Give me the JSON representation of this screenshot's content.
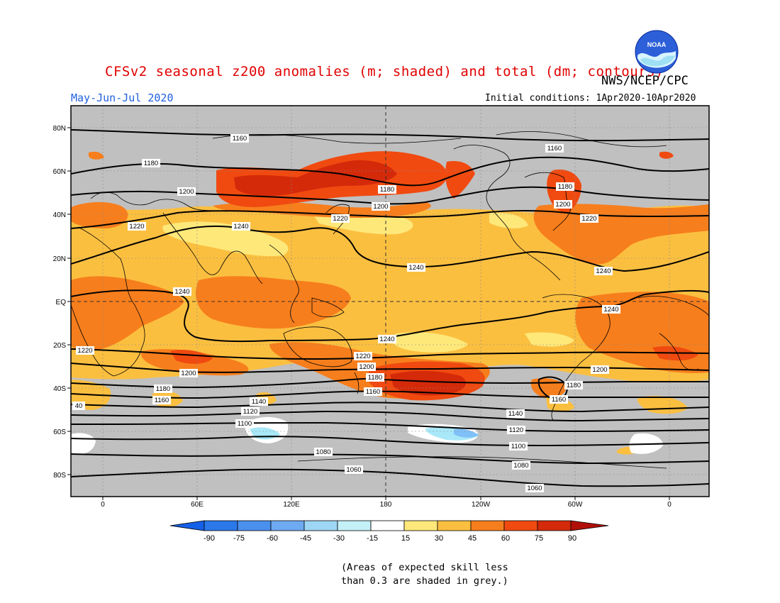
{
  "header": {
    "title": "CFSv2 seasonal z200 anomalies (m; shaded) and total (dm; contours)",
    "period": "May-Jun-Jul 2020",
    "agency": "NWS/NCEP/CPC",
    "initial_conditions": "Initial conditions: 1Apr2020-10Apr2020",
    "logo_text": "NOAA"
  },
  "axes": {
    "lat_labels": [
      "80N",
      "60N",
      "40N",
      "20N",
      "EQ",
      "20S",
      "40S",
      "60S",
      "80S"
    ],
    "lon_labels": [
      "0",
      "60E",
      "120E",
      "180",
      "120W",
      "60W",
      "0"
    ]
  },
  "colors": {
    "grey": "#c0c0c0",
    "yellow": "#ffe87a",
    "light_orange": "#fbbf40",
    "orange": "#f77e1c",
    "red_orange": "#f04a10",
    "red": "#d42a0a",
    "light_cyan": "#a8e8f8",
    "light_blue": "#80c0f8",
    "white": "#ffffff"
  },
  "colorbar": {
    "ticks": [
      "-90",
      "-75",
      "-60",
      "-45",
      "-30",
      "-15",
      "15",
      "30",
      "45",
      "60",
      "75",
      "90"
    ],
    "colors": [
      "#1560e8",
      "#2b78ea",
      "#4a90ee",
      "#6eaaf2",
      "#9ed6f6",
      "#c4f0f8",
      "#ffffff",
      "#ffe87a",
      "#fbbf40",
      "#f77e1c",
      "#f04a10",
      "#d42a0a",
      "#b01008"
    ]
  },
  "contour_labels": [
    "1160",
    "1160",
    "1180",
    "1180",
    "1200",
    "1200",
    "1200",
    "1180",
    "1220",
    "1240",
    "1220",
    "1240",
    "1220",
    "1240",
    "1240",
    "1240",
    "1240",
    "1220",
    "1220",
    "1200",
    "1200",
    "1180",
    "1160",
    "1200",
    "1180",
    "1160",
    "40",
    "1140",
    "1120",
    "1100",
    "1080",
    "1060",
    "1140",
    "1120",
    "1100",
    "1080",
    "1060",
    "1180",
    "1160"
  ],
  "footnote": {
    "line1": "(Areas of expected skill less",
    "line2": "than 0.3 are shaded in grey.)"
  }
}
